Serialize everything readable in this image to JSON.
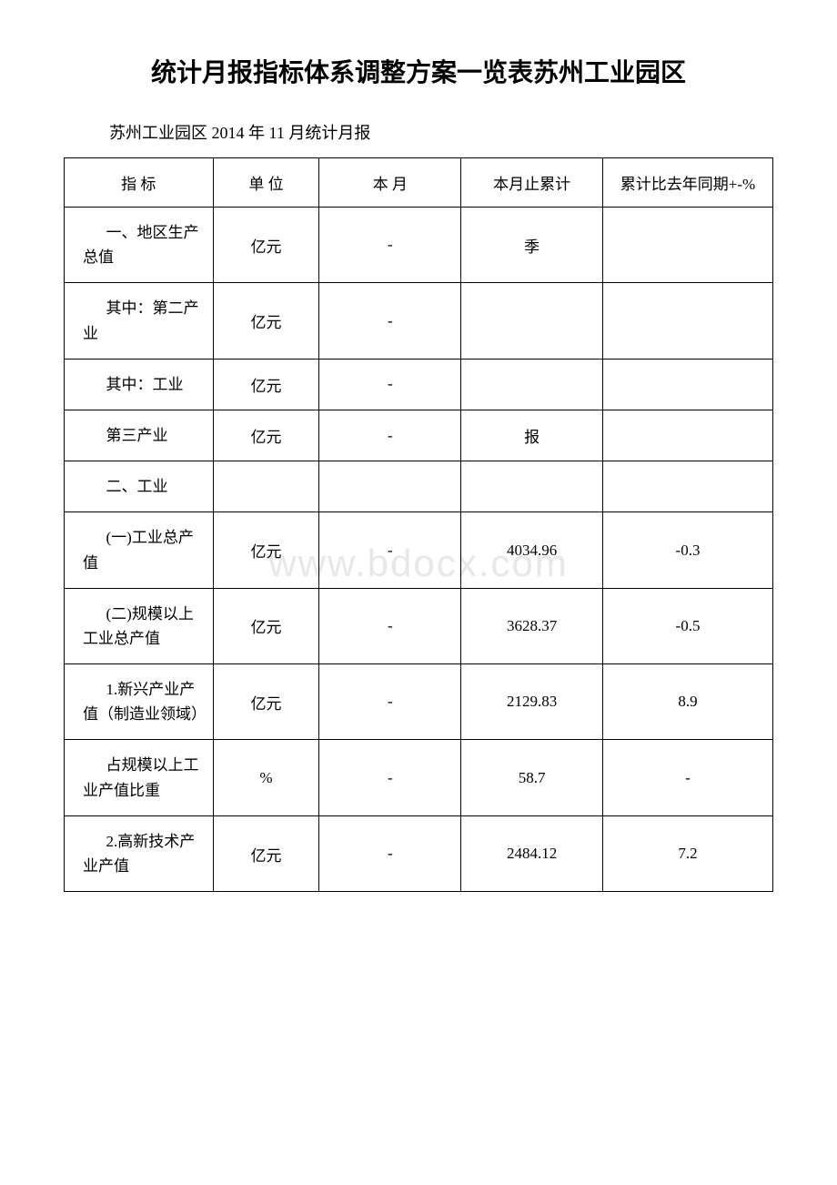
{
  "title": "统计月报指标体系调整方案一览表苏州工业园区",
  "subtitle": "苏州工业园区 2014 年 11 月统计月报",
  "watermark": "www.bdocx.com",
  "headers": {
    "indicator": "指 标",
    "unit": "单 位",
    "month": "本 月",
    "cumulative": "本月止累计",
    "yoy": "累计比去年同期+-%"
  },
  "rows": [
    {
      "indicator": "一、地区生产总值",
      "unit": "亿元",
      "month": "-",
      "cumulative": "季",
      "yoy": ""
    },
    {
      "indicator": "其中：第二产业",
      "unit": "亿元",
      "month": "-",
      "cumulative": "",
      "yoy": ""
    },
    {
      "indicator": "其中：工业",
      "unit": "亿元",
      "month": "-",
      "cumulative": "",
      "yoy": ""
    },
    {
      "indicator": "第三产业",
      "unit": "亿元",
      "month": "-",
      "cumulative": "报",
      "yoy": ""
    },
    {
      "indicator": "二、工业",
      "unit": "",
      "month": "",
      "cumulative": "",
      "yoy": ""
    },
    {
      "indicator": "(一)工业总产值",
      "unit": "亿元",
      "month": "-",
      "cumulative": "4034.96",
      "yoy": "-0.3"
    },
    {
      "indicator": "(二)规模以上工业总产值",
      "unit": "亿元",
      "month": "-",
      "cumulative": "3628.37",
      "yoy": "-0.5"
    },
    {
      "indicator": "1.新兴产业产值（制造业领域）",
      "unit": "亿元",
      "month": "-",
      "cumulative": "2129.83",
      "yoy": "8.9"
    },
    {
      "indicator": "占规模以上工业产值比重",
      "unit": "%",
      "month": "-",
      "cumulative": "58.7",
      "yoy": "-"
    },
    {
      "indicator": "2.高新技术产业产值",
      "unit": "亿元",
      "month": "-",
      "cumulative": "2484.12",
      "yoy": "7.2"
    }
  ]
}
